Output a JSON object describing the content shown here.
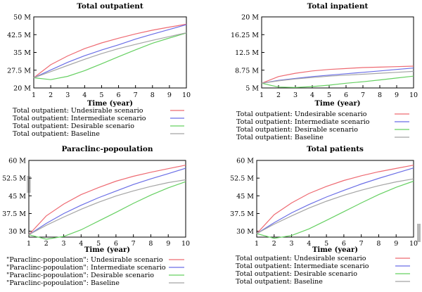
{
  "charts": [
    {
      "type": "line",
      "title": "Total outpatient",
      "xlabel": "Time (year)",
      "ylabel": "",
      "x": [
        1,
        2,
        3,
        4,
        5,
        6,
        7,
        8,
        9,
        10
      ],
      "xticks": [
        "1",
        "2",
        "3",
        "4",
        "5",
        "6",
        "7",
        "8",
        "9",
        "10"
      ],
      "ylim": [
        20,
        50
      ],
      "yticks": [
        20,
        27.5,
        35,
        42.5,
        50
      ],
      "yticklabels": [
        "20 M",
        "27.5 M",
        "35 M",
        "42.5 M",
        "50 M"
      ],
      "grid": false,
      "legend_position": "below",
      "series": [
        {
          "name": "Total outpatient: Undesirable scenario",
          "color": "#ee6a72",
          "values": [
            24.3,
            29.8,
            33.5,
            36.6,
            39.0,
            41.0,
            42.8,
            44.4,
            45.7,
            46.9
          ]
        },
        {
          "name": "Total outpatient: Intermediate scenario",
          "color": "#6a6ee6",
          "values": [
            24.3,
            27.6,
            30.8,
            33.6,
            36.0,
            38.2,
            40.6,
            42.7,
            44.7,
            46.7
          ]
        },
        {
          "name": "Total outpatient: Desirable scenario",
          "color": "#66d062",
          "values": [
            24.3,
            23.5,
            24.9,
            27.3,
            30.2,
            33.2,
            36.1,
            38.9,
            41.1,
            43.2
          ]
        },
        {
          "name": "Total outpatient: Baseline",
          "color": "#a5a5a5",
          "values": [
            24.3,
            26.9,
            29.5,
            32.1,
            34.5,
            36.6,
            38.4,
            40.1,
            41.7,
            43.3
          ]
        }
      ]
    },
    {
      "type": "line",
      "title": "Total inpatient",
      "xlabel": "Time (year)",
      "ylabel": "",
      "x": [
        1,
        2,
        3,
        4,
        5,
        6,
        7,
        8,
        9,
        10
      ],
      "xticks": [
        "1",
        "2",
        "3",
        "4",
        "5",
        "6",
        "7",
        "8",
        "9",
        "10"
      ],
      "ylim": [
        5,
        20
      ],
      "yticks": [
        5,
        8.75,
        12.5,
        16.25,
        20
      ],
      "yticklabels": [
        "5 M",
        "8.75 M",
        "12.5 M",
        "16.25 M",
        "20 M"
      ],
      "grid": false,
      "legend_position": "below",
      "series": [
        {
          "name": "Total outpatient: Undesirable scenario",
          "color": "#ee6a72",
          "values": [
            6.0,
            7.4,
            8.1,
            8.6,
            8.9,
            9.1,
            9.3,
            9.4,
            9.5,
            9.6
          ]
        },
        {
          "name": "Total outpatient: Intermediate scenario",
          "color": "#6a6ee6",
          "values": [
            6.0,
            6.6,
            7.0,
            7.4,
            7.7,
            8.0,
            8.3,
            8.6,
            8.9,
            9.2
          ]
        },
        {
          "name": "Total outpatient: Desirable scenario",
          "color": "#66d062",
          "values": [
            6.0,
            5.2,
            5.1,
            5.3,
            5.6,
            6.0,
            6.3,
            6.7,
            7.1,
            7.5
          ]
        },
        {
          "name": "Total outpatient: Baseline",
          "color": "#a5a5a5",
          "values": [
            6.0,
            6.5,
            6.9,
            7.2,
            7.5,
            7.7,
            7.9,
            8.1,
            8.3,
            8.5
          ]
        }
      ]
    },
    {
      "type": "line",
      "title": "Paraclinc-popoulation",
      "xlabel": "Time (year)",
      "ylabel": "",
      "x": [
        1,
        2,
        3,
        4,
        5,
        6,
        7,
        8,
        9,
        10
      ],
      "xticks": [
        "1",
        "2",
        "3",
        "4",
        "5",
        "6",
        "7",
        "8",
        "9",
        "10"
      ],
      "ylim": [
        27.5,
        60
      ],
      "yticks": [
        30,
        37.5,
        45,
        52.5,
        60
      ],
      "yticklabels": [
        "30 M",
        "37.5 M",
        "45 M",
        "52.5 M",
        "60 M"
      ],
      "grid": false,
      "legend_position": "below",
      "series": [
        {
          "name": "\"Paraclinc-popoulation\": Undesirable scenario",
          "color": "#ee6a72",
          "values": [
            28.5,
            36.5,
            41.5,
            45.5,
            48.5,
            51.2,
            53.3,
            55.0,
            56.5,
            58.0
          ]
        },
        {
          "name": "\"Paraclinc-popoulation\": Intermediate scenario",
          "color": "#6a6ee6",
          "values": [
            28.5,
            33.3,
            37.5,
            41.0,
            44.2,
            47.0,
            49.8,
            52.2,
            54.4,
            56.7
          ]
        },
        {
          "name": "\"Paraclinc-popoulation\": Desirable scenario",
          "color": "#66d062",
          "values": [
            28.5,
            26.6,
            27.8,
            30.6,
            34.3,
            38.0,
            41.8,
            45.3,
            48.4,
            51.0
          ]
        },
        {
          "name": "\"Paraclinc-popoulation\": Baseline",
          "color": "#a5a5a5",
          "values": [
            28.5,
            32.5,
            36.0,
            39.3,
            42.3,
            44.9,
            47.1,
            49.0,
            50.6,
            51.8
          ]
        }
      ]
    },
    {
      "type": "line",
      "title": "Total patients",
      "xlabel": "Time (year)",
      "ylabel": "",
      "x": [
        1,
        2,
        3,
        4,
        5,
        6,
        7,
        8,
        9,
        10
      ],
      "xticks": [
        "1",
        "2",
        "3",
        "4",
        "5",
        "6",
        "7",
        "8",
        "9",
        "10"
      ],
      "ylim": [
        27.5,
        60
      ],
      "yticks": [
        30,
        37.5,
        45,
        52.5,
        60
      ],
      "yticklabels": [
        "30 M",
        "37.5 M",
        "45 M",
        "52.5 M",
        "60 M"
      ],
      "grid": false,
      "legend_position": "below",
      "series": [
        {
          "name": "Total outpatient: Undesirable scenario",
          "color": "#ee6a72",
          "values": [
            29.0,
            37.0,
            42.0,
            46.0,
            49.0,
            51.5,
            53.5,
            55.2,
            56.6,
            58.0
          ]
        },
        {
          "name": "Total outpatient: Intermediate scenario",
          "color": "#6a6ee6",
          "values": [
            29.0,
            33.6,
            37.8,
            41.3,
            44.5,
            47.3,
            50.0,
            52.4,
            54.6,
            56.8
          ]
        },
        {
          "name": "Total outpatient: Desirable scenario",
          "color": "#66d062",
          "values": [
            29.0,
            27.0,
            28.2,
            31.0,
            34.6,
            38.3,
            42.0,
            45.5,
            48.6,
            51.2
          ]
        },
        {
          "name": "Total outpatient: Baseline",
          "color": "#a5a5a5",
          "values": [
            29.0,
            33.0,
            36.5,
            39.8,
            42.7,
            45.2,
            47.4,
            49.3,
            50.9,
            52.2
          ]
        }
      ]
    }
  ]
}
